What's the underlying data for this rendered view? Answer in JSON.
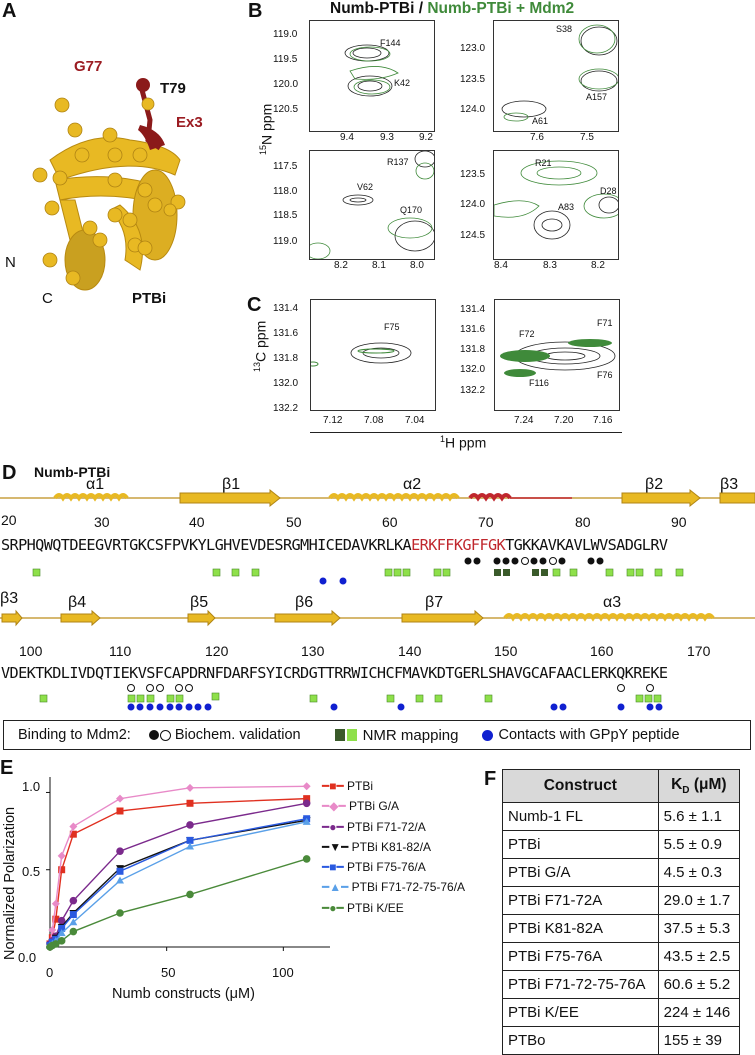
{
  "panels": {
    "A": {
      "label": "A",
      "structure_name": "PTBi",
      "annotations": {
        "g77": "G77",
        "t79": "T79",
        "ex3": "Ex3",
        "n_term": "N",
        "c_term": "C"
      },
      "colors": {
        "protein": "#e8b923",
        "ex3": "#8b1a1a"
      }
    },
    "B": {
      "label": "B",
      "title_black": "Numb-PTBi",
      "title_sep": " / ",
      "title_green": "Numb-PTBi + Mdm2",
      "ylabel": "15N ppm",
      "ylabel_sup": "15",
      "ylabel_rest": "N ppm",
      "spectra": [
        {
          "yticks": [
            "119.0",
            "119.5",
            "120.0",
            "120.5"
          ],
          "xticks": [
            "9.4",
            "9.3",
            "9.2"
          ],
          "peaks": [
            "F144",
            "K42"
          ]
        },
        {
          "yticks": [
            "123.0",
            "123.5",
            "124.0"
          ],
          "xticks": [
            "7.6",
            "7.5"
          ],
          "peaks": [
            "S38",
            "A157",
            "A61"
          ]
        },
        {
          "yticks": [
            "117.5",
            "118.0",
            "118.5",
            "119.0"
          ],
          "xticks": [
            "8.2",
            "8.1",
            "8.0"
          ],
          "peaks": [
            "R137",
            "V62",
            "Q170"
          ]
        },
        {
          "yticks": [
            "123.5",
            "124.0",
            "124.5"
          ],
          "xticks": [
            "8.4",
            "8.3",
            "8.2"
          ],
          "peaks": [
            "R21",
            "D28",
            "A83"
          ]
        }
      ]
    },
    "C": {
      "label": "C",
      "ylabel_sup": "13",
      "ylabel_rest": "C ppm",
      "xlabel_sup": "1",
      "xlabel_rest": "H ppm",
      "spectra": [
        {
          "yticks": [
            "131.4",
            "131.6",
            "131.8",
            "132.0",
            "132.2"
          ],
          "xticks": [
            "7.12",
            "7.08",
            "7.04"
          ],
          "peaks": [
            "F75"
          ]
        },
        {
          "yticks": [
            "131.4",
            "131.6",
            "131.8",
            "132.0",
            "132.2"
          ],
          "xticks": [
            "7.24",
            "7.20",
            "7.16"
          ],
          "peaks": [
            "F72",
            "F71",
            "F116",
            "F76"
          ]
        }
      ]
    },
    "D": {
      "label": "D",
      "title": "Numb-PTBi",
      "row1": {
        "start": "20",
        "numbers": [
          "30",
          "40",
          "50",
          "60",
          "70",
          "80",
          "90"
        ],
        "seq_a": "SRPHQWQTDEEGVRTGKCSFPVKYLGHVEVDESRGMHICEDAVKRLKA",
        "seq_red": "ERKFFKGFFGK",
        "seq_b": "TGKKAVKAVLWVSADGLRV",
        "ss": [
          "α1",
          "β1",
          "α2",
          "β2",
          "β3"
        ]
      },
      "row2": {
        "numbers": [
          "100",
          "110",
          "120",
          "130",
          "140",
          "150",
          "160",
          "170"
        ],
        "seq": "VDEKTKDLIVDQTIEKVSFCAPDRNFDARFSYICRDGTTRRWICHCFMAVKDTGERLSHAVGCAFAACLERKQKREKE",
        "ss": [
          "β3",
          "β4",
          "β5",
          "β6",
          "β7",
          "α3"
        ]
      },
      "legend": {
        "binding_label": "Binding to Mdm2:",
        "biochem": "Biochem. validation",
        "nmr": "NMR mapping",
        "contacts": "Contacts with GPpY peptide"
      },
      "colors": {
        "helix": "#e8b923",
        "strand": "#e8b923",
        "ex3": "#c0272d",
        "nmr_dark": "#3a5a2a",
        "nmr_light": "#8ee04a",
        "contact": "#1020d0"
      }
    },
    "E": {
      "label": "E"
    },
    "F": {
      "label": "F",
      "headers": {
        "construct": "Construct",
        "kd_main": "K",
        "kd_sub": "D",
        "kd_unit": " (μM)"
      },
      "rows": [
        {
          "construct": "Numb-1 FL",
          "kd": "5.6 ± 1.1"
        },
        {
          "construct": "PTBi",
          "kd": "5.5 ± 0.9"
        },
        {
          "construct": "PTBi G/A",
          "kd": "4.5 ± 0.3"
        },
        {
          "construct": "PTBi F71-72A",
          "kd": "29.0 ± 1.7"
        },
        {
          "construct": "PTBi K81-82A",
          "kd": "37.5 ± 5.3"
        },
        {
          "construct": "PTBi F75-76A",
          "kd": "43.5 ± 2.5"
        },
        {
          "construct": "PTBi F71-72-75-76A",
          "kd": "60.6 ± 5.2"
        },
        {
          "construct": "PTBi K/EE",
          "kd": "224 ± 146"
        },
        {
          "construct": "PTBo",
          "kd": "155 ± 39"
        }
      ]
    }
  },
  "chart_data": {
    "type": "line",
    "title": "",
    "xlabel": "Numb constructs (μM)",
    "ylabel": "Normalized Polarization",
    "xlim": [
      0,
      120
    ],
    "ylim": [
      0,
      1.1
    ],
    "xticks": [
      "0",
      "50",
      "100"
    ],
    "yticks": [
      "0.0",
      "0.5",
      "1.0"
    ],
    "x": [
      0,
      1,
      2.5,
      5,
      10,
      30,
      60,
      110
    ],
    "legend_position": "right",
    "series": [
      {
        "name": "PTBi",
        "color": "#e03020",
        "marker": "square",
        "values": [
          0.02,
          0.06,
          0.18,
          0.5,
          0.73,
          0.88,
          0.93,
          0.96
        ]
      },
      {
        "name": "PTBi G/A",
        "color": "#e88ac8",
        "marker": "diamond",
        "values": [
          0.02,
          0.11,
          0.28,
          0.59,
          0.78,
          0.96,
          1.03,
          1.04
        ]
      },
      {
        "name": "PTBi F71-72/A",
        "color": "#7b2a8c",
        "marker": "circle",
        "values": [
          0.02,
          0.04,
          0.07,
          0.17,
          0.3,
          0.62,
          0.79,
          0.93
        ]
      },
      {
        "name": "PTBi K81-82/A",
        "color": "#111111",
        "marker": "triangle-down",
        "values": [
          0.01,
          0.03,
          0.06,
          0.13,
          0.22,
          0.51,
          0.69,
          0.82
        ]
      },
      {
        "name": "PTBi F75-76/A",
        "color": "#2a5ae0",
        "marker": "square",
        "values": [
          0.01,
          0.03,
          0.05,
          0.12,
          0.21,
          0.49,
          0.69,
          0.83
        ]
      },
      {
        "name": "PTBi F71-72-75-76/A",
        "color": "#5aa0e8",
        "marker": "triangle-up",
        "values": [
          0.01,
          0.02,
          0.04,
          0.09,
          0.16,
          0.43,
          0.65,
          0.81
        ]
      },
      {
        "name": "PTBi K/EE",
        "color": "#4a8a3a",
        "marker": "circle",
        "values": [
          0.0,
          0.01,
          0.02,
          0.04,
          0.1,
          0.22,
          0.34,
          0.57
        ]
      }
    ]
  }
}
